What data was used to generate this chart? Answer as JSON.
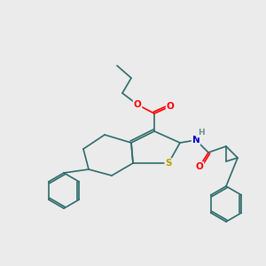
{
  "background_color": "#ebebeb",
  "bond_color": "#2d6b6b",
  "atom_colors": {
    "O": "#ff0000",
    "S": "#b8a000",
    "N": "#0000cc",
    "H": "#6a9090",
    "C": "#2d6b6b"
  },
  "figsize": [
    3.0,
    3.0
  ],
  "dpi": 100
}
